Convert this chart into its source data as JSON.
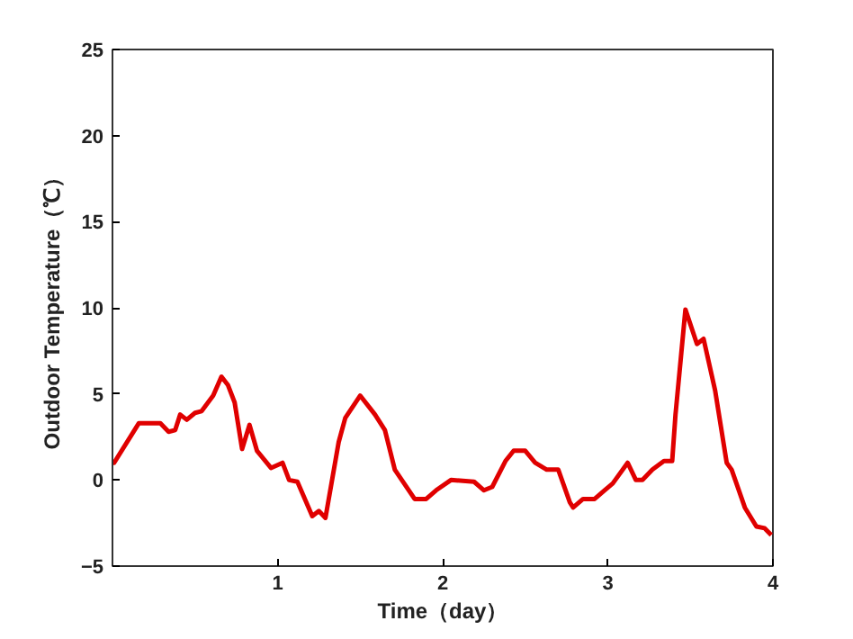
{
  "chart_data": {
    "type": "line",
    "xlabel": "Time（day）",
    "ylabel": "Outdoor Temperature（℃）",
    "xlim": [
      0,
      4
    ],
    "ylim": [
      -5,
      25
    ],
    "xticks": [
      1,
      2,
      3,
      4
    ],
    "yticks": [
      -5,
      0,
      5,
      10,
      15,
      20,
      25
    ],
    "grid": false,
    "marker": "none",
    "line_style": "solid",
    "series": [
      {
        "color": "#e00000",
        "x": [
          0,
          0.01,
          0.16,
          0.29,
          0.34,
          0.38,
          0.41,
          0.45,
          0.5,
          0.54,
          0.61,
          0.66,
          0.7,
          0.74,
          0.785,
          0.83,
          0.875,
          0.96,
          1.03,
          1.07,
          1.12,
          1.21,
          1.25,
          1.29,
          1.37,
          1.41,
          1.5,
          1.59,
          1.65,
          1.71,
          1.83,
          1.9,
          1.96,
          2.05,
          2.19,
          2.25,
          2.3,
          2.38,
          2.43,
          2.5,
          2.56,
          2.63,
          2.7,
          2.77,
          2.79,
          2.85,
          2.92,
          2.98,
          3.03,
          3.12,
          3.17,
          3.21,
          3.27,
          3.34,
          3.39,
          3.41,
          3.47,
          3.54,
          3.58,
          3.65,
          3.72,
          3.75,
          3.83,
          3.9,
          3.95,
          3.99
        ],
        "values": [
          1.0,
          1.0,
          3.3,
          3.3,
          2.8,
          2.9,
          3.8,
          3.5,
          3.9,
          4.0,
          4.9,
          6.0,
          5.5,
          4.5,
          1.8,
          3.2,
          1.7,
          0.7,
          1.0,
          0,
          -0.1,
          -2.1,
          -1.8,
          -2.2,
          2.2,
          3.6,
          4.9,
          3.8,
          2.9,
          0.6,
          -1.1,
          -1.1,
          -0.6,
          0,
          -0.1,
          -0.6,
          -0.4,
          1.1,
          1.7,
          1.7,
          1.0,
          0.6,
          0.6,
          -1.3,
          -1.6,
          -1.1,
          -1.1,
          -0.6,
          -0.2,
          1.0,
          0,
          0,
          0.6,
          1.1,
          1.1,
          3.8,
          9.9,
          7.9,
          8.2,
          5.2,
          1.0,
          0.6,
          -1.6,
          -2.7,
          -2.8,
          -3.2
        ]
      }
    ]
  }
}
